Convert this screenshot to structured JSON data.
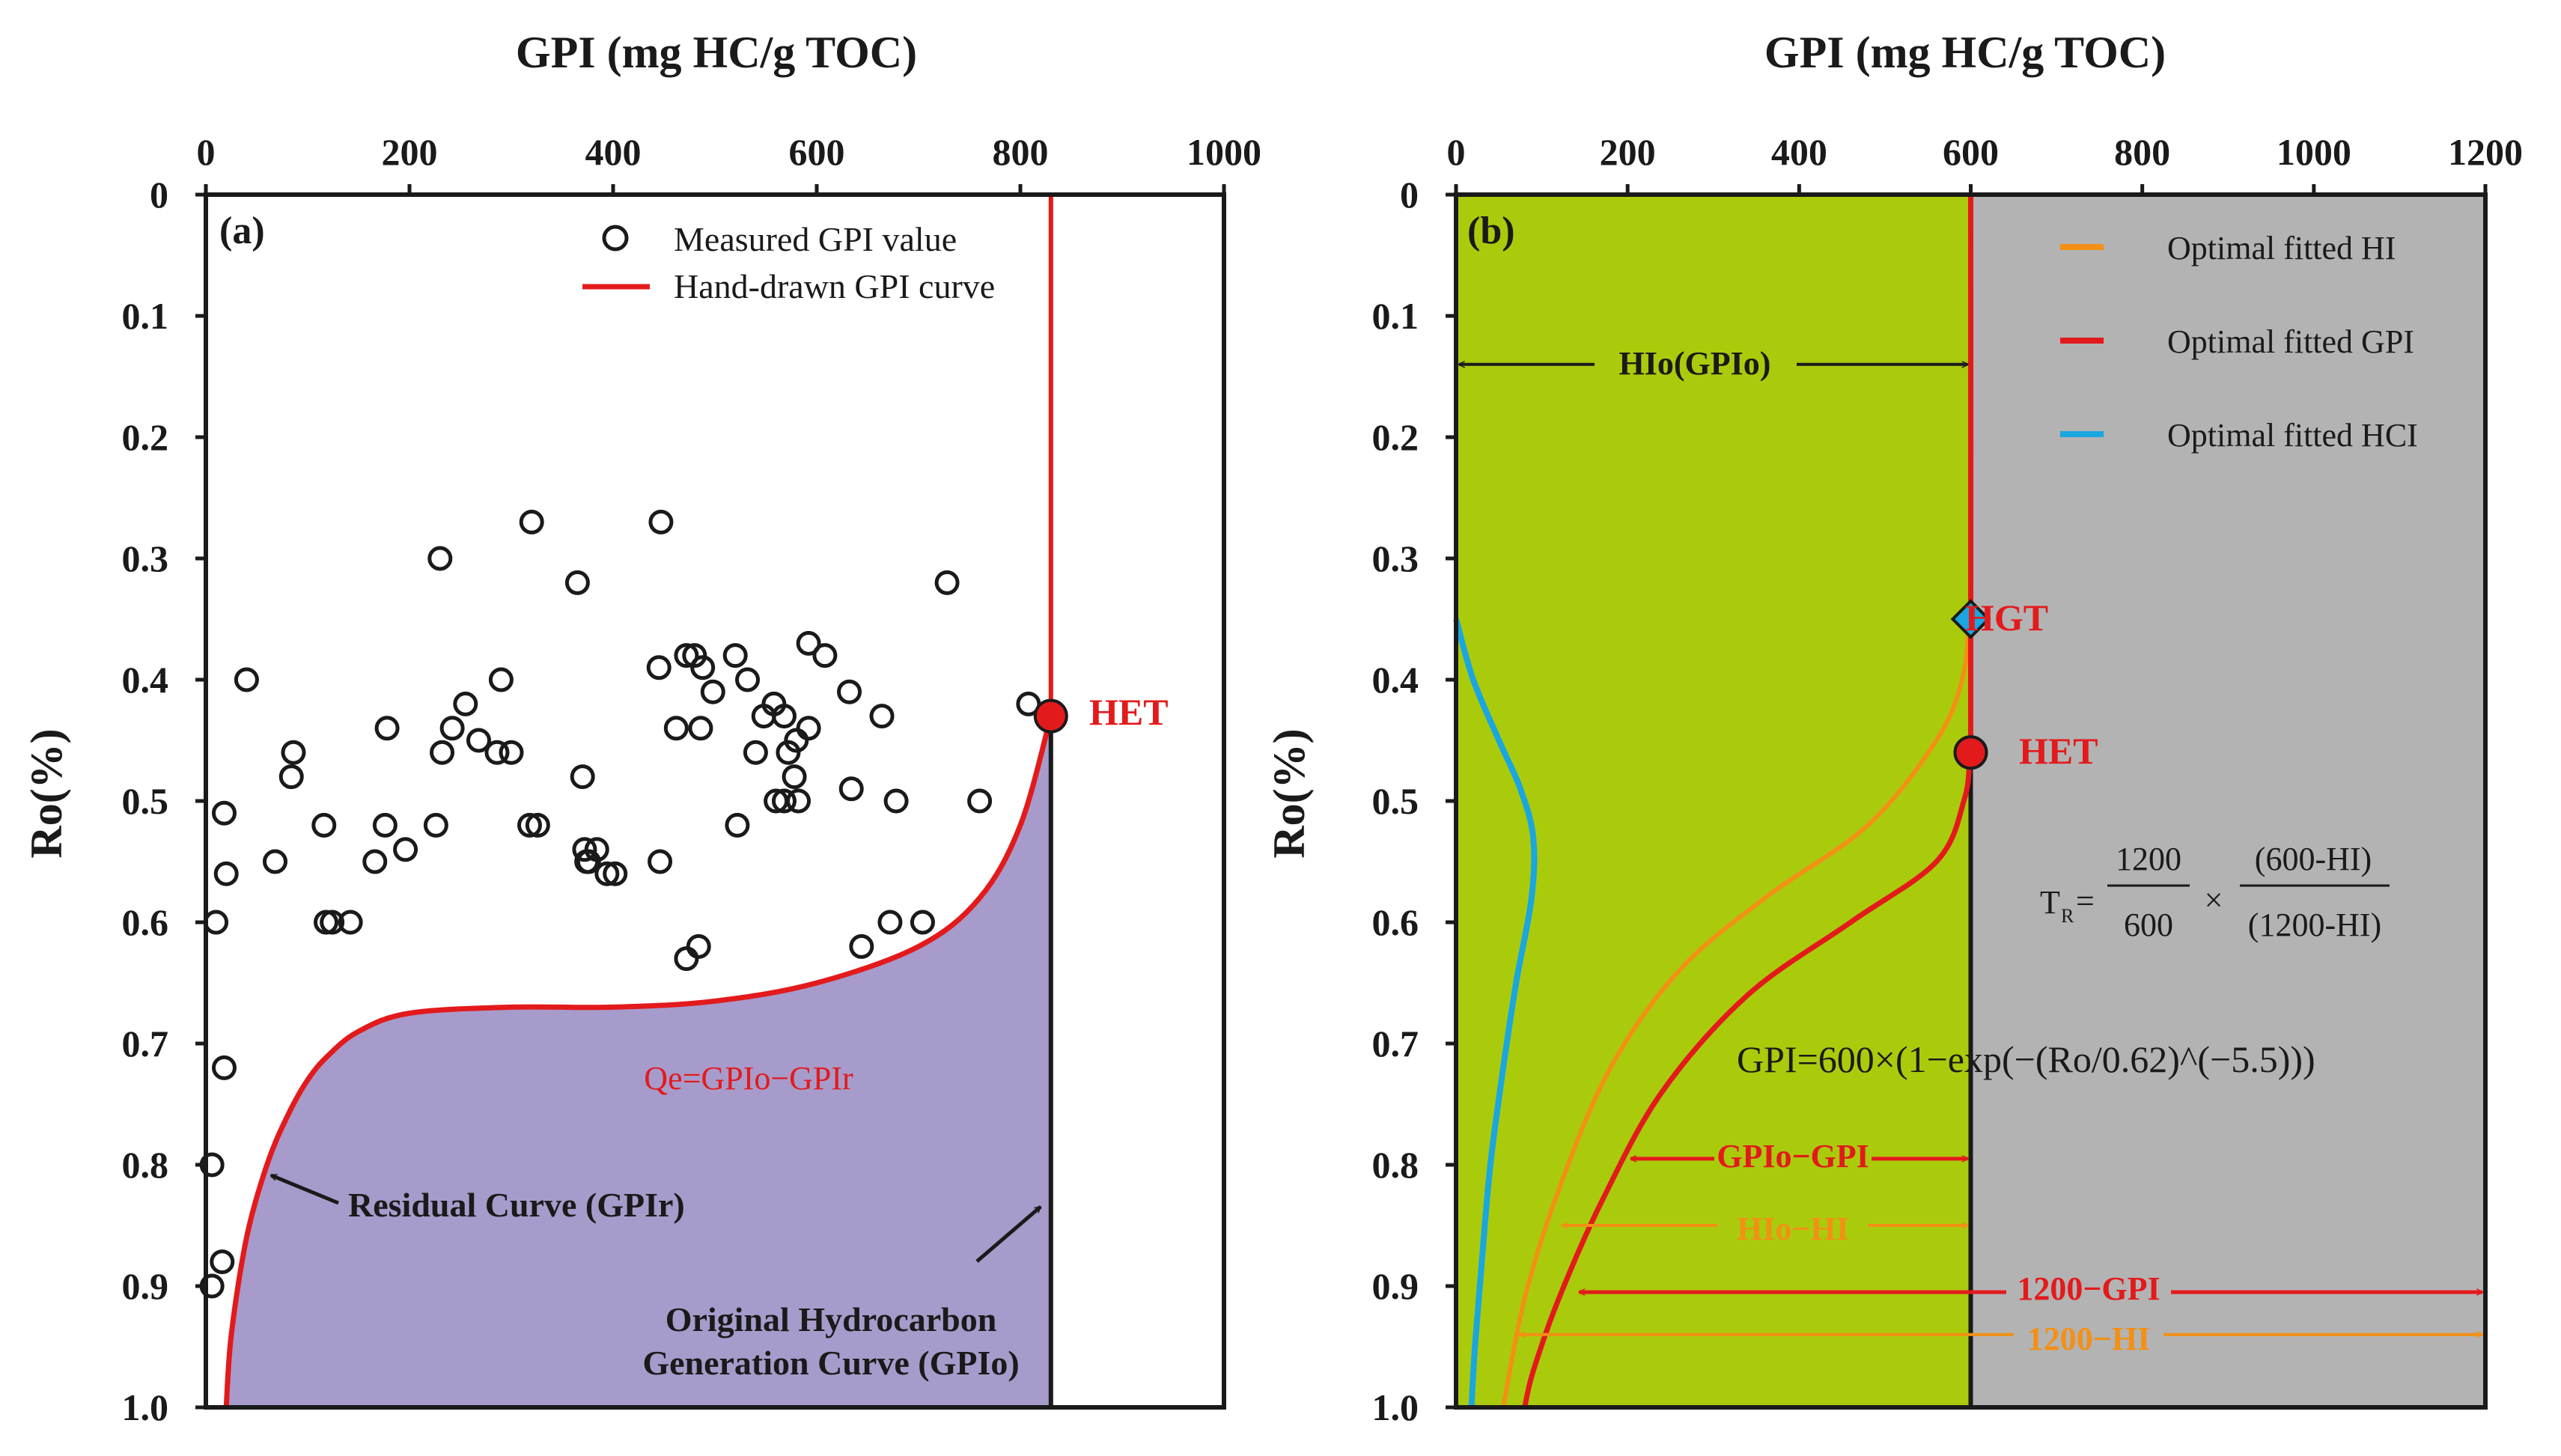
{
  "chart_data": [
    {
      "panel_label": "(a)",
      "type": "scatter",
      "title": "",
      "xlabel": "GPI (mg  HC/g TOC)",
      "ylabel": "Ro(%)",
      "xlim": [
        0,
        1000
      ],
      "ylim": [
        0,
        1.0
      ],
      "y_inverted": true,
      "x_ticks": [
        "0",
        "200",
        "400",
        "600",
        "800",
        "1000"
      ],
      "y_ticks": [
        "0",
        "0.1",
        "0.2",
        "0.3",
        "0.4",
        "0.5",
        "0.6",
        "0.7",
        "0.8",
        "0.9",
        "1.0"
      ],
      "legend": [
        {
          "label": "Measured GPI value",
          "marker": "circle",
          "color": "#1a1a1a"
        },
        {
          "label": "Hand-drawn GPI curve",
          "marker": "line",
          "color": "#e31a1c"
        }
      ],
      "scatter_points": {
        "x": [
          320,
          447,
          230,
          728,
          365,
          40,
          445,
          472,
          480,
          488,
          498,
          520,
          532,
          548,
          558,
          568,
          580,
          592,
          608,
          632,
          808,
          540,
          572,
          578,
          582,
          462,
          486,
          286,
          268,
          242,
          290,
          255,
          232,
          300,
          370,
          522,
          560,
          664,
          760,
          678,
          634,
          568,
          592,
          86,
          18,
          318,
          326,
          178,
          226,
          116,
          84,
          384,
          372,
          376,
          394,
          374,
          176,
          196,
          166,
          68,
          20,
          402,
          446,
          118,
          124,
          142,
          672,
          704,
          644,
          484,
          472,
          10,
          18,
          6,
          16,
          6
        ],
        "y": [
          0.27,
          0.27,
          0.3,
          0.32,
          0.32,
          0.4,
          0.39,
          0.38,
          0.38,
          0.39,
          0.41,
          0.38,
          0.4,
          0.43,
          0.42,
          0.43,
          0.45,
          0.37,
          0.38,
          0.41,
          0.42,
          0.46,
          0.46,
          0.48,
          0.5,
          0.44,
          0.44,
          0.46,
          0.45,
          0.44,
          0.4,
          0.42,
          0.46,
          0.46,
          0.48,
          0.52,
          0.5,
          0.43,
          0.5,
          0.5,
          0.49,
          0.5,
          0.44,
          0.46,
          0.51,
          0.52,
          0.52,
          0.44,
          0.52,
          0.52,
          0.48,
          0.54,
          0.54,
          0.55,
          0.56,
          0.55,
          0.52,
          0.54,
          0.55,
          0.55,
          0.56,
          0.56,
          0.55,
          0.6,
          0.6,
          0.6,
          0.6,
          0.6,
          0.62,
          0.62,
          0.63,
          0.6,
          0.72,
          0.8,
          0.88,
          0.9
        ]
      },
      "series": [
        {
          "name": "Hand-drawn GPI curve / Original Hydrocarbon Generation Curve (GPIo)",
          "x": [
            830,
            830,
            830
          ],
          "y": [
            0.0,
            0.43,
            1.0
          ],
          "color": "#e31a1c"
        },
        {
          "name": "Residual Curve (GPIr)",
          "x": [
            830,
            800,
            760,
            700,
            600,
            500,
            400,
            300,
            200,
            150,
            120,
            100,
            80,
            60,
            40,
            25,
            20
          ],
          "y": [
            0.43,
            0.52,
            0.58,
            0.62,
            0.65,
            0.665,
            0.67,
            0.67,
            0.675,
            0.69,
            0.71,
            0.73,
            0.76,
            0.8,
            0.86,
            0.94,
            1.0
          ],
          "color": "#e31a1c"
        }
      ],
      "fill": {
        "between": "Residual Curve (GPIr) and GPIo",
        "color": "#a79bcb",
        "label": "Qe=GPIo−GPIr"
      },
      "markers": [
        {
          "label": "HET",
          "x": 830,
          "y": 0.43,
          "color": "#e31a1c"
        }
      ],
      "annotations": [
        "Residual  Curve (GPIr)",
        "Original Hydrocarbon",
        "Generation Curve (GPIo)"
      ]
    },
    {
      "panel_label": "(b)",
      "type": "line",
      "title": "",
      "xlabel": "GPI (mg  HC/g TOC)",
      "ylabel": "Ro(%)",
      "xlim": [
        0,
        1200
      ],
      "ylim": [
        0,
        1.0
      ],
      "y_inverted": true,
      "x_ticks": [
        "0",
        "200",
        "400",
        "600",
        "800",
        "1000",
        "1200"
      ],
      "y_ticks": [
        "0",
        "0.1",
        "0.2",
        "0.3",
        "0.4",
        "0.5",
        "0.6",
        "0.7",
        "0.8",
        "0.9",
        "1.0"
      ],
      "background_regions": [
        {
          "from": 0,
          "to": 600,
          "color": "#aacb0b"
        },
        {
          "from": 600,
          "to": 1200,
          "color": "#b3b3b3"
        }
      ],
      "legend": [
        {
          "label": "Optimal fitted HI",
          "color": "#f39015"
        },
        {
          "label": "Optimal fitted GPI",
          "color": "#e31a1c"
        },
        {
          "label": "Optimal fitted HCI",
          "color": "#1aa6e0"
        }
      ],
      "series": [
        {
          "name": "Optimal fitted HI",
          "x": [
            600,
            600,
            598,
            590,
            560,
            480,
            360,
            260,
            180,
            120,
            80,
            55
          ],
          "y": [
            0.0,
            0.3,
            0.35,
            0.4,
            0.45,
            0.52,
            0.58,
            0.64,
            0.72,
            0.82,
            0.91,
            1.0
          ],
          "color": "#f39015"
        },
        {
          "name": "Optimal fitted GPI",
          "x": [
            600,
            600,
            599,
            592,
            560,
            460,
            340,
            240,
            170,
            120,
            90,
            80
          ],
          "y": [
            0.0,
            0.4,
            0.46,
            0.5,
            0.55,
            0.6,
            0.66,
            0.74,
            0.83,
            0.91,
            0.97,
            1.0
          ],
          "color": "#e31a1c"
        },
        {
          "name": "Optimal fitted HCI",
          "x": [
            0,
            20,
            50,
            75,
            90,
            88,
            70,
            55,
            40,
            30,
            22,
            18
          ],
          "y": [
            0.35,
            0.4,
            0.45,
            0.49,
            0.53,
            0.58,
            0.65,
            0.72,
            0.8,
            0.88,
            0.95,
            1.0
          ],
          "color": "#1aa6e0"
        }
      ],
      "markers": [
        {
          "label": "HGT",
          "x": 600,
          "y": 0.35,
          "shape": "diamond",
          "color": "#1aa6e0"
        },
        {
          "label": "HET",
          "x": 600,
          "y": 0.46,
          "shape": "circle",
          "color": "#e31a1c"
        }
      ],
      "annotations": [
        {
          "text": "HIo(GPIo)",
          "from_x": 0,
          "to_x": 600,
          "y": 0.14
        },
        {
          "text": "GPIo−GPI",
          "from_x": 200,
          "to_x": 600,
          "y": 0.795
        },
        {
          "text": "HIo−HI",
          "from_x": 120,
          "to_x": 600,
          "y": 0.85
        },
        {
          "text": "1200−GPI",
          "from_x": 140,
          "to_x": 1200,
          "y": 0.905
        },
        {
          "text": "1200−HI",
          "from_x": 70,
          "to_x": 1200,
          "y": 0.94
        }
      ],
      "equations": {
        "tr_lhs": "T",
        "tr_sub": "R",
        "tr_eq": "=",
        "tr_num1": "1200",
        "tr_den1": "600",
        "tr_times": "×",
        "tr_num2": "(600-HI)",
        "tr_den2": "(1200-HI)",
        "gpi_eq": "GPI=600×(1−exp(−(Ro/0.62)^(−5.5)))"
      }
    }
  ]
}
